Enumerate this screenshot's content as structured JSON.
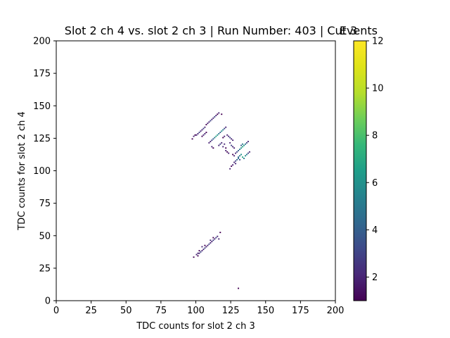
{
  "chart_data": {
    "type": "heatmap",
    "title": "Slot 2 ch 4 vs. slot 2 ch 3 | Run Number: 403 | Cut 3",
    "xlabel": "TDC counts for slot 2 ch 3",
    "ylabel": "TDC counts for slot 2 ch 4",
    "colorbar_label": "Events",
    "colormap": "viridis",
    "bin_width": 1,
    "xlim": [
      0,
      200
    ],
    "ylim": [
      0,
      200
    ],
    "clim": [
      1,
      12
    ],
    "x_ticks": [
      0,
      25,
      50,
      75,
      100,
      125,
      150,
      175,
      200
    ],
    "y_ticks": [
      0,
      25,
      50,
      75,
      100,
      125,
      150,
      175,
      200
    ],
    "colorbar_ticks": [
      2,
      4,
      6,
      8,
      10,
      12
    ],
    "cells": [
      [
        97,
        124,
        1
      ],
      [
        98,
        126,
        2
      ],
      [
        99,
        127,
        1
      ],
      [
        100,
        127,
        2
      ],
      [
        101,
        128,
        2
      ],
      [
        102,
        129,
        3
      ],
      [
        103,
        130,
        2
      ],
      [
        104,
        131,
        2
      ],
      [
        105,
        132,
        3
      ],
      [
        106,
        133,
        2
      ],
      [
        107,
        135,
        1
      ],
      [
        108,
        136,
        2
      ],
      [
        109,
        137,
        2
      ],
      [
        110,
        138,
        3
      ],
      [
        111,
        139,
        2
      ],
      [
        112,
        140,
        2
      ],
      [
        113,
        141,
        3
      ],
      [
        114,
        142,
        2
      ],
      [
        115,
        143,
        1
      ],
      [
        116,
        144,
        2
      ],
      [
        118,
        143,
        1
      ],
      [
        104,
        126,
        1
      ],
      [
        105,
        127,
        2
      ],
      [
        106,
        128,
        2
      ],
      [
        107,
        129,
        1
      ],
      [
        109,
        121,
        2
      ],
      [
        110,
        122,
        2
      ],
      [
        111,
        123,
        3
      ],
      [
        112,
        124,
        4
      ],
      [
        113,
        125,
        5
      ],
      [
        114,
        126,
        7
      ],
      [
        115,
        127,
        6
      ],
      [
        116,
        128,
        5
      ],
      [
        117,
        129,
        4
      ],
      [
        118,
        130,
        6
      ],
      [
        119,
        131,
        5
      ],
      [
        120,
        132,
        3
      ],
      [
        121,
        133,
        2
      ],
      [
        116,
        119,
        2
      ],
      [
        117,
        120,
        3
      ],
      [
        118,
        121,
        2
      ],
      [
        119,
        118,
        2
      ],
      [
        120,
        120,
        2
      ],
      [
        121,
        117,
        1
      ],
      [
        111,
        118,
        2
      ],
      [
        112,
        117,
        1
      ],
      [
        122,
        127,
        2
      ],
      [
        123,
        126,
        2
      ],
      [
        124,
        125,
        3
      ],
      [
        125,
        124,
        2
      ],
      [
        126,
        123,
        2
      ],
      [
        119,
        125,
        1
      ],
      [
        120,
        126,
        2
      ],
      [
        121,
        115,
        2
      ],
      [
        122,
        114,
        1
      ],
      [
        123,
        113,
        2
      ],
      [
        124,
        121,
        2
      ],
      [
        125,
        119,
        3
      ],
      [
        126,
        118,
        2
      ],
      [
        127,
        117,
        2
      ],
      [
        126,
        112,
        1
      ],
      [
        127,
        111,
        2
      ],
      [
        128,
        113,
        2
      ],
      [
        129,
        114,
        3
      ],
      [
        130,
        115,
        4
      ],
      [
        131,
        116,
        5
      ],
      [
        132,
        117,
        6
      ],
      [
        133,
        118,
        7
      ],
      [
        134,
        119,
        6
      ],
      [
        135,
        120,
        5
      ],
      [
        136,
        121,
        3
      ],
      [
        137,
        122,
        2
      ],
      [
        130,
        110,
        4
      ],
      [
        131,
        111,
        5
      ],
      [
        132,
        112,
        6
      ],
      [
        133,
        110,
        7
      ],
      [
        134,
        109,
        5
      ],
      [
        135,
        111,
        6
      ],
      [
        136,
        112,
        5
      ],
      [
        137,
        113,
        3
      ],
      [
        138,
        114,
        2
      ],
      [
        129,
        108,
        4
      ],
      [
        130,
        109,
        5
      ],
      [
        128,
        107,
        3
      ],
      [
        131,
        108,
        3
      ],
      [
        127,
        106,
        2
      ],
      [
        128,
        105,
        2
      ],
      [
        126,
        104,
        2
      ],
      [
        125,
        103,
        1
      ],
      [
        124,
        101,
        2
      ],
      [
        132,
        119,
        4
      ],
      [
        133,
        120,
        5
      ],
      [
        98,
        33,
        1
      ],
      [
        100,
        35,
        2
      ],
      [
        101,
        36,
        2
      ],
      [
        102,
        36,
        2
      ],
      [
        103,
        37,
        3
      ],
      [
        104,
        38,
        2
      ],
      [
        105,
        39,
        2
      ],
      [
        106,
        40,
        3
      ],
      [
        107,
        41,
        2
      ],
      [
        108,
        42,
        2
      ],
      [
        109,
        43,
        3
      ],
      [
        110,
        44,
        2
      ],
      [
        111,
        45,
        2
      ],
      [
        112,
        46,
        3
      ],
      [
        113,
        47,
        2
      ],
      [
        114,
        48,
        3
      ],
      [
        115,
        49,
        2
      ],
      [
        116,
        47,
        2
      ],
      [
        117,
        52,
        1
      ],
      [
        102,
        38,
        1
      ],
      [
        104,
        41,
        2
      ],
      [
        106,
        42,
        1
      ],
      [
        110,
        46,
        2
      ],
      [
        112,
        48,
        1
      ],
      [
        101,
        34,
        1
      ],
      [
        130,
        9,
        1
      ]
    ]
  }
}
